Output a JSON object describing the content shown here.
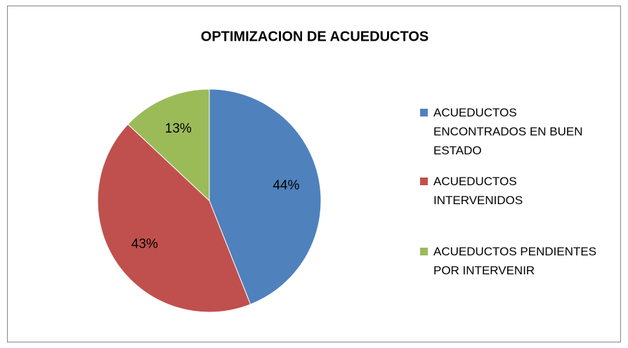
{
  "chart_data": {
    "type": "pie",
    "title": "OPTIMIZACION DE ACUEDUCTOS",
    "categories": [
      "ACUEDUCTOS ENCONTRADOS EN BUEN ESTADO",
      "ACUEDUCTOS INTERVENIDOS",
      "ACUEDUCTOS PENDIENTES POR INTERVENIR"
    ],
    "values": [
      44,
      43,
      13
    ],
    "value_labels": [
      "44%",
      "43%",
      "13%"
    ],
    "colors": [
      "#4f81bd",
      "#c0504d",
      "#9bbb59"
    ],
    "legend": "right"
  }
}
